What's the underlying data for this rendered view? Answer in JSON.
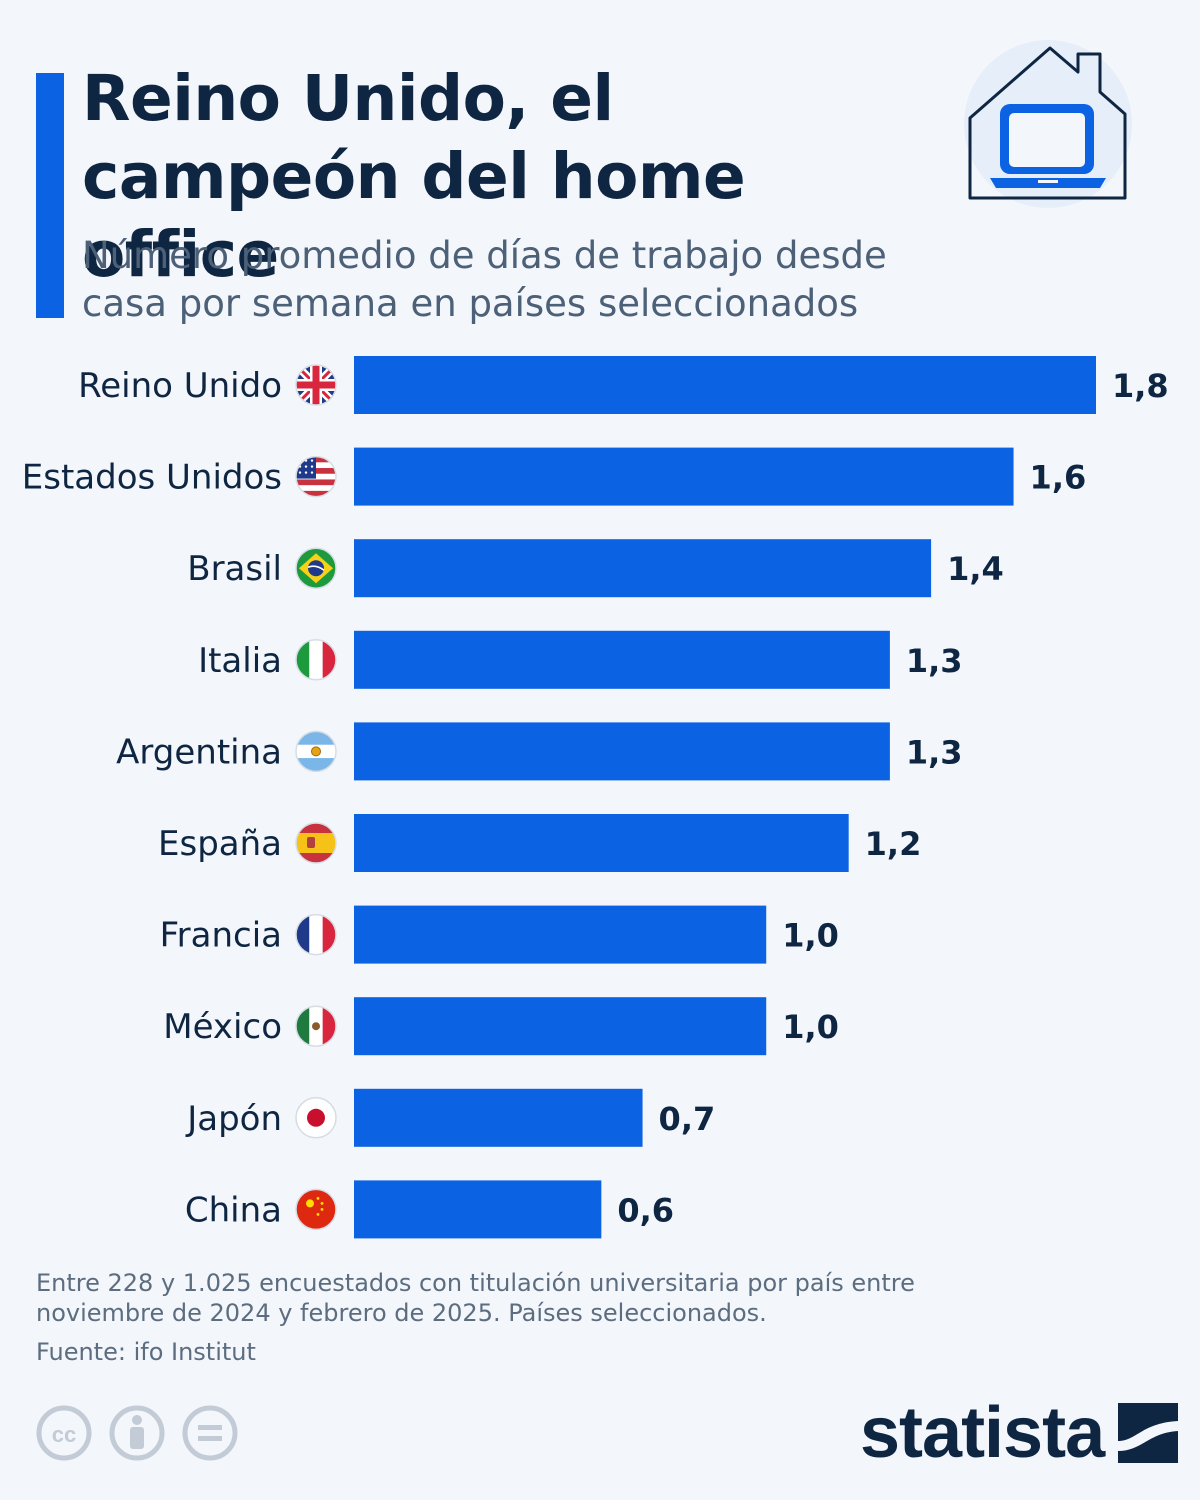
{
  "header": {
    "title": "Reino Unido, el campeón del home office",
    "subtitle": "Número promedio de días de trabajo desde casa por semana en países seleccionados"
  },
  "chart_data": {
    "type": "bar",
    "orientation": "horizontal",
    "categories": [
      "Reino Unido",
      "Estados Unidos",
      "Brasil",
      "Italia",
      "Argentina",
      "España",
      "Francia",
      "México",
      "Japón",
      "China"
    ],
    "values": [
      1.8,
      1.6,
      1.4,
      1.3,
      1.3,
      1.2,
      1.0,
      1.0,
      0.7,
      0.6
    ],
    "value_labels": [
      "1,8",
      "1,6",
      "1,4",
      "1,3",
      "1,3",
      "1,2",
      "1,0",
      "1,0",
      "0,7",
      "0,6"
    ],
    "flag_icons": [
      "uk-flag-icon",
      "usa-flag-icon",
      "brazil-flag-icon",
      "italy-flag-icon",
      "argentina-flag-icon",
      "spain-flag-icon",
      "france-flag-icon",
      "mexico-flag-icon",
      "japan-flag-icon",
      "china-flag-icon"
    ],
    "bar_color": "#0b62e3",
    "xlim": [
      0,
      1.8
    ],
    "grid": false,
    "legend": "none"
  },
  "footer": {
    "notes": "Entre 228 y 1.025 encuestados con titulación universitaria por país entre noviembre de 2024 y febrero de 2025. Países seleccionados.",
    "source": "Fuente: ifo Institut",
    "brand": "statista",
    "license_icons": [
      "cc-icon",
      "attribution-icon",
      "no-derivatives-icon"
    ]
  },
  "colors": {
    "accent": "#0b62e3",
    "title": "#0f2642",
    "background": "#f3f6fb"
  }
}
